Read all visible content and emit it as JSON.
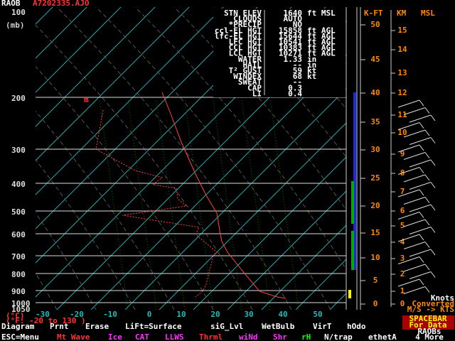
{
  "header": {
    "app": "RAOB",
    "file": "A7202335.AJO"
  },
  "marker": "m",
  "pressure_axis": {
    "unit": "(mb)",
    "labels": [
      "100",
      "200",
      "300",
      "400",
      "500",
      "600",
      "700",
      "800",
      "900",
      "1000",
      "1050"
    ]
  },
  "temperature_axis": {
    "labels": [
      "-30",
      "-20",
      "-10",
      "0",
      "10",
      "20",
      "30",
      "40",
      "50"
    ],
    "unit": "(°C)",
    "fahrenheit_range": "(°F: -20 to 130 )"
  },
  "indices": [
    {
      "label": "STN ELEV",
      "value": "1640",
      "unit": "ft  MSL"
    },
    {
      "label": "CLOUDS",
      "value": "AUTO",
      "unit": ""
    },
    {
      "label": "*PRECIP",
      "value": "NO",
      "unit": ""
    },
    {
      "label": "ccl-EL HGT",
      "value": "15858",
      "unit": "ft  AGL"
    },
    {
      "label": "lfc-EL HGT",
      "value": "15644",
      "unit": "ft  AGL"
    },
    {
      "label": "LFC HGT",
      "value": "10541",
      "unit": "ft  AGL"
    },
    {
      "label": "CCL HGT",
      "value": "10383",
      "unit": "ft  AGL"
    },
    {
      "label": "LCL HGT",
      "value": "10271",
      "unit": "ft  AGL"
    },
    {
      "label": "WATER",
      "value": "1.33",
      "unit": "in"
    },
    {
      "label": "HAIL",
      "value": "--",
      "unit": "in"
    },
    {
      "label": "T² GUST",
      "value": "59",
      "unit": "kt"
    },
    {
      "label": "WINDEX",
      "value": "68",
      "unit": "kt"
    },
    {
      "label": "SWEAT",
      "value": "--",
      "unit": ""
    },
    {
      "label": "CAP",
      "value": "0.3",
      "unit": ""
    },
    {
      "label": "LI",
      "value": "0.4",
      "unit": ""
    }
  ],
  "height_axes": {
    "kft_title": "K-FT",
    "km_title": "KM",
    "msl": "MSL",
    "kft": [
      "50",
      "45",
      "40",
      "35",
      "30",
      "25",
      "20",
      "15",
      "10",
      "5",
      "0"
    ],
    "km": [
      "15",
      "14",
      "13",
      "12",
      "11",
      "10",
      "9",
      "8",
      "7",
      "6",
      "5",
      "4",
      "3",
      "2",
      "1",
      "0"
    ]
  },
  "menu": {
    "row1": [
      "Diagram",
      "Prnt",
      "Erase",
      "LiFt=Surface",
      "siG_Lvl",
      "WetBulb",
      "VirT",
      "hOdo"
    ],
    "row2": [
      "ESC=Menu",
      "Mt Wave",
      "Ice",
      "CAT",
      "LLWS",
      "Thrml",
      "wiNd",
      "Shr",
      "rH",
      "N/trap",
      "ethetA"
    ]
  },
  "wind_panel": [
    "Knots",
    "Converted",
    "M/S -> KTS"
  ],
  "data_prompt": [
    "SPACEBAR",
    "For Data"
  ],
  "more": [
    "RAOBs",
    "4 More"
  ]
}
